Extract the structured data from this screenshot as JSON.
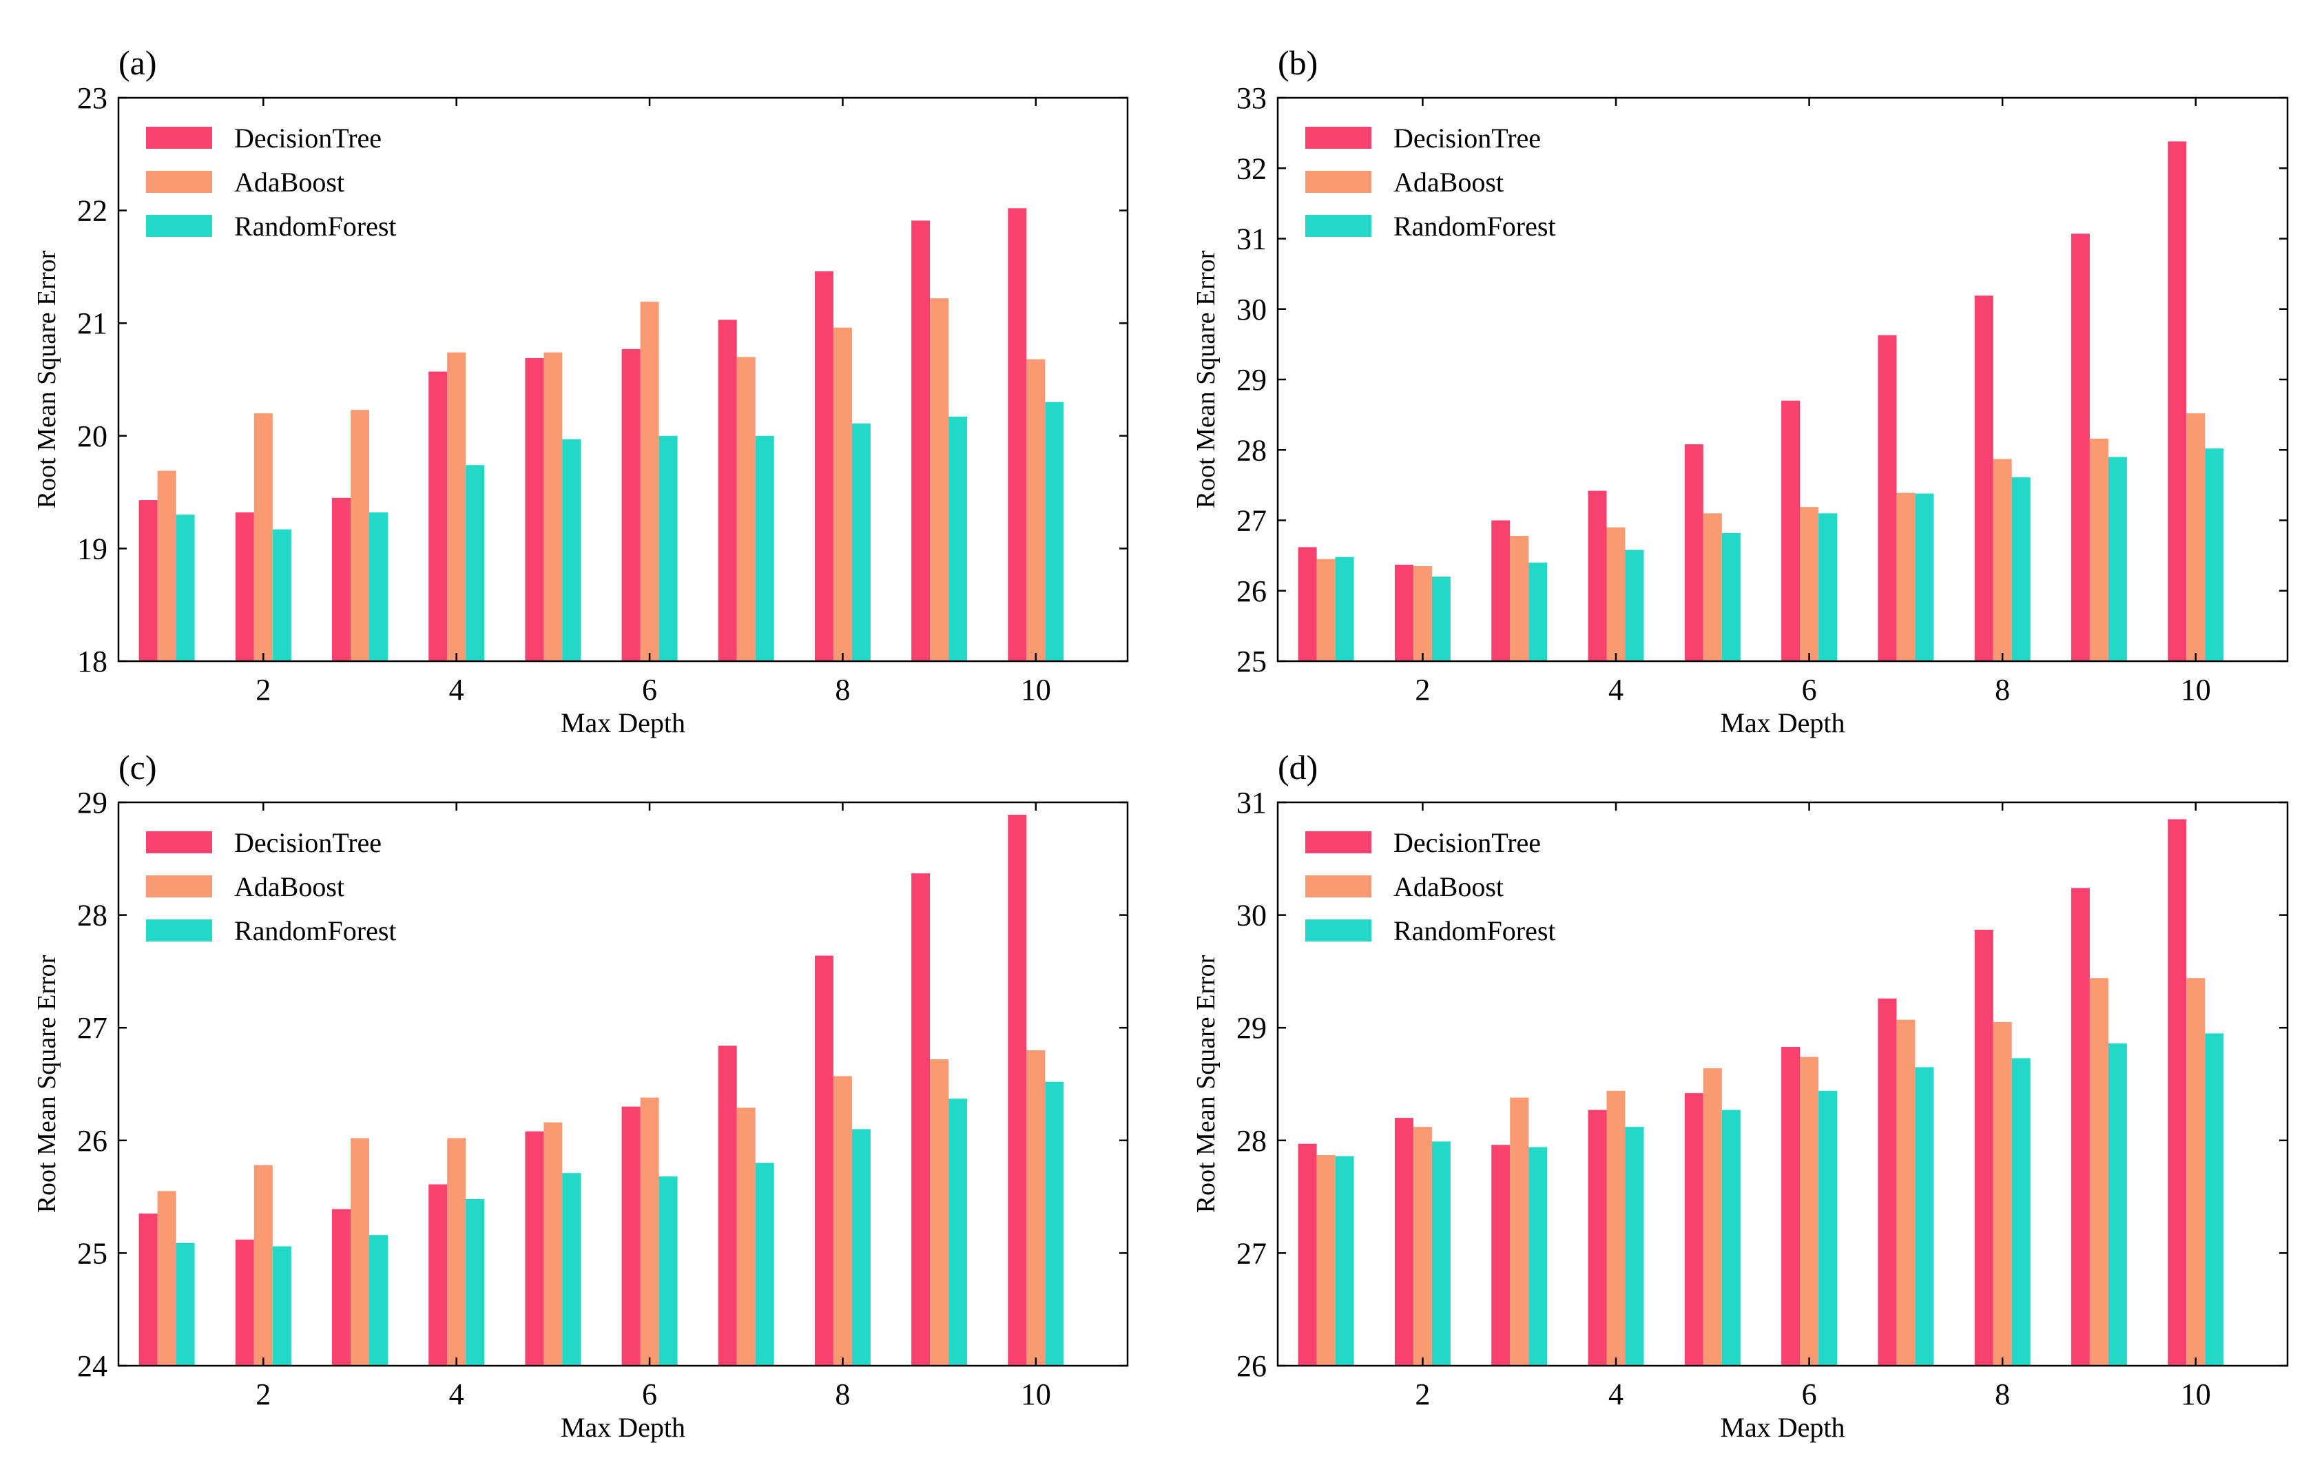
{
  "colors": {
    "DecisionTree": "#f7426f",
    "AdaBoost": "#f99a72",
    "RandomForest": "#22d9c8"
  },
  "chart_data": [
    {
      "panel_label": "(a)",
      "type": "bar",
      "xlabel": "Max Depth",
      "ylabel": "Root Mean Square Error",
      "x": [
        1,
        2,
        3,
        4,
        5,
        6,
        7,
        8,
        9,
        10
      ],
      "xticks": [
        "2",
        "4",
        "6",
        "8",
        "10"
      ],
      "yticks": [
        "18",
        "19",
        "20",
        "21",
        "22",
        "23"
      ],
      "ylim": [
        18,
        23
      ],
      "legend": "top-left",
      "grid": false,
      "series": [
        {
          "name": "DecisionTree",
          "values": [
            19.43,
            19.32,
            19.45,
            20.57,
            20.69,
            20.77,
            21.03,
            21.46,
            21.91,
            22.02
          ]
        },
        {
          "name": "AdaBoost",
          "values": [
            19.69,
            20.2,
            20.23,
            20.74,
            20.74,
            21.19,
            20.7,
            20.96,
            21.22,
            20.68
          ]
        },
        {
          "name": "RandomForest",
          "values": [
            19.3,
            19.17,
            19.32,
            19.74,
            19.97,
            20.0,
            20.0,
            20.11,
            20.17,
            20.3
          ]
        }
      ]
    },
    {
      "panel_label": "(b)",
      "type": "bar",
      "xlabel": "Max Depth",
      "ylabel": "Root Mean Square Error",
      "x": [
        1,
        2,
        3,
        4,
        5,
        6,
        7,
        8,
        9,
        10
      ],
      "xticks": [
        "2",
        "4",
        "6",
        "8",
        "10"
      ],
      "yticks": [
        "25",
        "26",
        "27",
        "28",
        "29",
        "30",
        "31",
        "32",
        "33"
      ],
      "ylim": [
        25,
        33
      ],
      "legend": "top-left",
      "grid": false,
      "series": [
        {
          "name": "DecisionTree",
          "values": [
            26.62,
            26.37,
            27.0,
            27.42,
            28.08,
            28.7,
            29.63,
            30.19,
            31.07,
            32.38
          ]
        },
        {
          "name": "AdaBoost",
          "values": [
            26.45,
            26.35,
            26.78,
            26.9,
            27.1,
            27.19,
            27.39,
            27.87,
            28.16,
            28.52
          ]
        },
        {
          "name": "RandomForest",
          "values": [
            26.48,
            26.2,
            26.4,
            26.58,
            26.82,
            27.1,
            27.38,
            27.61,
            27.9,
            28.02
          ]
        }
      ]
    },
    {
      "panel_label": "(c)",
      "type": "bar",
      "xlabel": "Max Depth",
      "ylabel": "Root Mean Square Error",
      "x": [
        1,
        2,
        3,
        4,
        5,
        6,
        7,
        8,
        9,
        10
      ],
      "xticks": [
        "2",
        "4",
        "6",
        "8",
        "10"
      ],
      "yticks": [
        "24",
        "25",
        "26",
        "27",
        "28",
        "29"
      ],
      "ylim": [
        24,
        29
      ],
      "legend": "top-left",
      "grid": false,
      "series": [
        {
          "name": "DecisionTree",
          "values": [
            25.35,
            25.12,
            25.39,
            25.61,
            26.08,
            26.3,
            26.84,
            27.64,
            28.37,
            28.89
          ]
        },
        {
          "name": "AdaBoost",
          "values": [
            25.55,
            25.78,
            26.02,
            26.02,
            26.16,
            26.38,
            26.29,
            26.57,
            26.72,
            26.8
          ]
        },
        {
          "name": "RandomForest",
          "values": [
            25.09,
            25.06,
            25.16,
            25.48,
            25.71,
            25.68,
            25.8,
            26.1,
            26.37,
            26.52
          ]
        }
      ]
    },
    {
      "panel_label": "(d)",
      "type": "bar",
      "xlabel": "Max Depth",
      "ylabel": "Root Mean Square Error",
      "x": [
        1,
        2,
        3,
        4,
        5,
        6,
        7,
        8,
        9,
        10
      ],
      "xticks": [
        "2",
        "4",
        "6",
        "8",
        "10"
      ],
      "yticks": [
        "26",
        "27",
        "28",
        "29",
        "30",
        "31"
      ],
      "ylim": [
        26,
        31
      ],
      "legend": "top-left",
      "grid": false,
      "series": [
        {
          "name": "DecisionTree",
          "values": [
            27.97,
            28.2,
            27.96,
            28.27,
            28.42,
            28.83,
            29.26,
            29.87,
            30.24,
            30.85
          ]
        },
        {
          "name": "AdaBoost",
          "values": [
            27.87,
            28.12,
            28.38,
            28.44,
            28.64,
            28.74,
            29.07,
            29.05,
            29.44,
            29.44
          ]
        },
        {
          "name": "RandomForest",
          "values": [
            27.86,
            27.99,
            27.94,
            28.12,
            28.27,
            28.44,
            28.65,
            28.73,
            28.86,
            28.95
          ]
        }
      ]
    }
  ]
}
